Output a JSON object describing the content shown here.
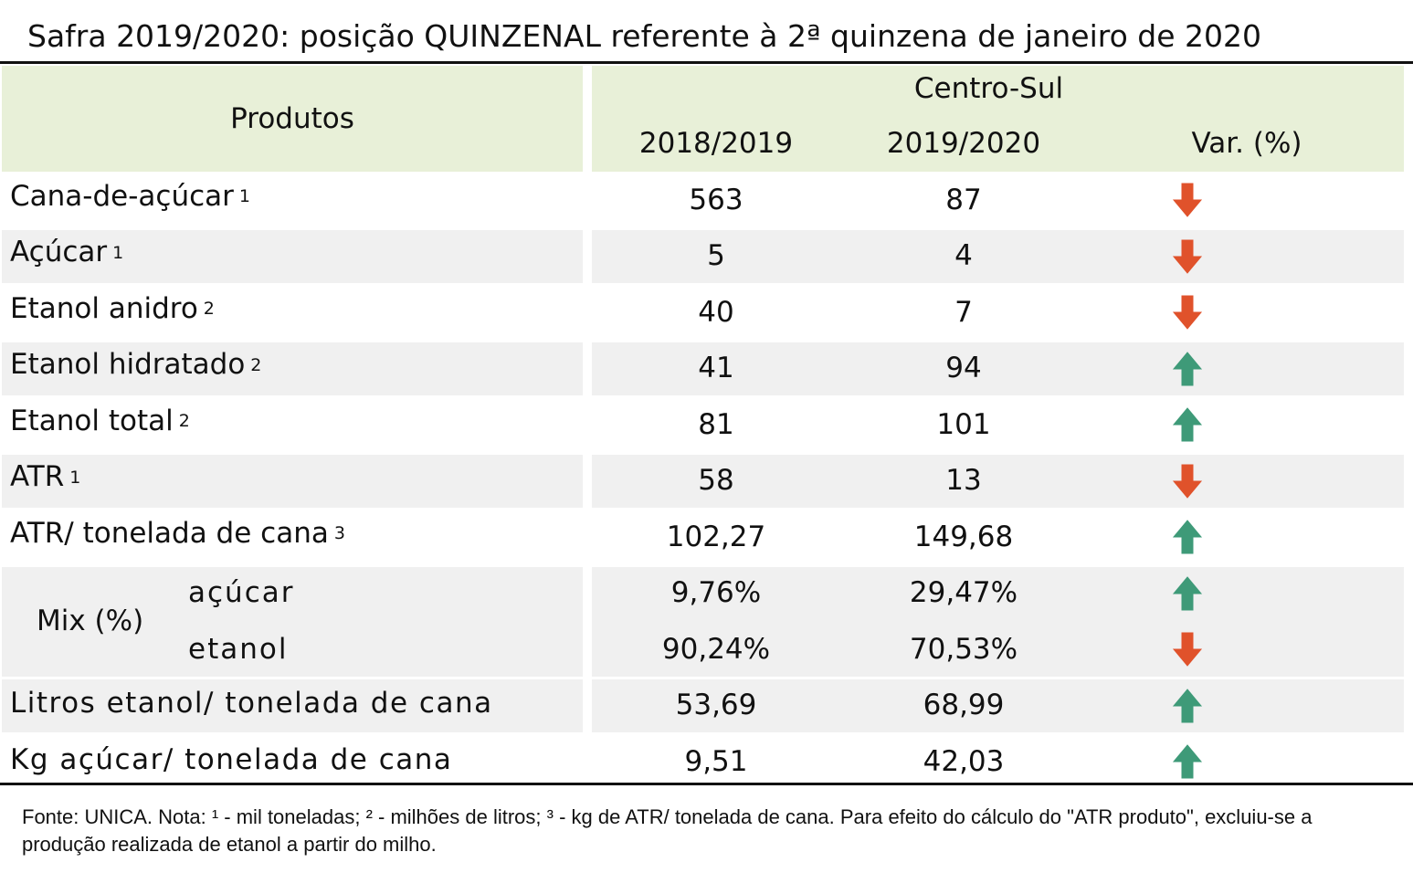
{
  "title": "Safra 2019/2020: posição QUINZENAL referente à 2ª quinzena de janeiro de 2020",
  "header": {
    "products": "Produtos",
    "region": "Centro-Sul",
    "col1": "2018/2019",
    "col2": "2019/2020",
    "col3": "Var. (%)"
  },
  "rows": [
    {
      "label": "Cana-de-açúcar",
      "note": "1",
      "v1": "563",
      "v2": "87",
      "trend": "down"
    },
    {
      "label": "Açúcar",
      "note": "1",
      "v1": "5",
      "v2": "4",
      "trend": "down"
    },
    {
      "label": "Etanol anidro",
      "note": "2",
      "v1": "40",
      "v2": "7",
      "trend": "down"
    },
    {
      "label": "Etanol hidratado",
      "note": "2",
      "v1": "41",
      "v2": "94",
      "trend": "up"
    },
    {
      "label": "Etanol total",
      "note": "2",
      "v1": "81",
      "v2": "101",
      "trend": "up"
    },
    {
      "label": "ATR",
      "note": "1",
      "v1": "58",
      "v2": "13",
      "trend": "down"
    },
    {
      "label": "ATR/ tonelada de cana",
      "note": "3",
      "v1": "102,27",
      "v2": "149,68",
      "trend": "up"
    }
  ],
  "mix": {
    "label": "Mix (%)",
    "rows": [
      {
        "label": "açúcar",
        "v1": "9,76%",
        "v2": "29,47%",
        "trend": "up"
      },
      {
        "label": "etanol",
        "v1": "90,24%",
        "v2": "70,53%",
        "trend": "down"
      }
    ]
  },
  "tail_rows": [
    {
      "label": "Litros etanol/ tonelada de cana",
      "v1": "53,69",
      "v2": "68,99",
      "trend": "up"
    },
    {
      "label": "Kg açúcar/ tonelada de cana",
      "v1": "9,51",
      "v2": "42,03",
      "trend": "up"
    }
  ],
  "footer": "Fonte: UNICA. Nota: ¹ - mil toneladas; ² - milhões de litros; ³ - kg de ATR/ tonelada de cana. Para efeito do cálculo do \"ATR produto\", excluiu-se a produção realizada de etanol a partir do milho.",
  "colors": {
    "header_bg": "#e8f0d8",
    "stripe_bg": "#f0f0f0",
    "down_arrow": "#e0522b",
    "up_arrow": "#3e9a78"
  },
  "icons": {
    "down": "down-arrow-icon",
    "up": "up-arrow-icon"
  }
}
